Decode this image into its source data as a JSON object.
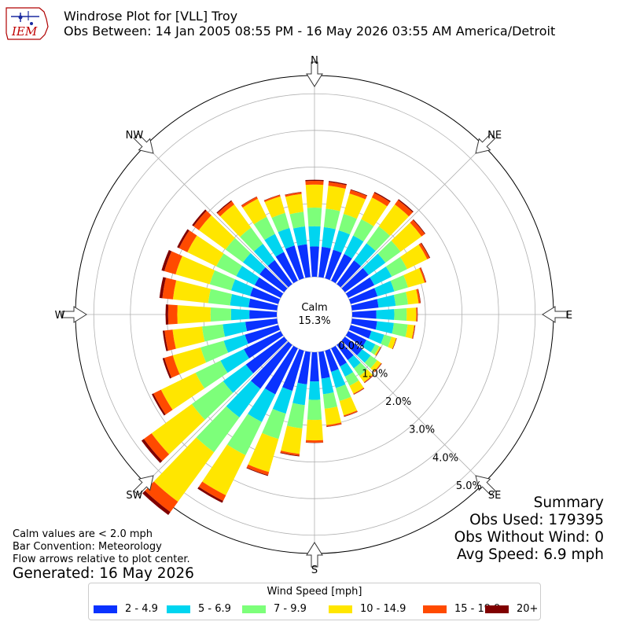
{
  "header": {
    "logo_text": "IEM",
    "title": "Windrose Plot for [VLL] Troy",
    "subtitle": "Obs Between: 14 Jan 2005 08:55 PM - 16 May 2026 03:55 AM America/Detroit"
  },
  "summary": {
    "title": "Summary",
    "obs_used": "Obs Used: 179395",
    "obs_without_wind": "Obs Without Wind: 0",
    "avg_speed": "Avg Speed: 6.9 mph"
  },
  "notes": {
    "calm": "Calm values are < 2.0 mph",
    "bar": "Bar Convention: Meteorology",
    "flow": "Flow arrows relative to plot center.",
    "generated": "Generated: 16 May 2026"
  },
  "legend": {
    "title": "Wind Speed [mph]",
    "items": [
      {
        "label": "2 - 4.9",
        "color": "#0a32ff"
      },
      {
        "label": "5 - 6.9",
        "color": "#00d5f0"
      },
      {
        "label": "7 - 9.9",
        "color": "#7dff7a"
      },
      {
        "label": "10 - 14.9",
        "color": "#ffe600"
      },
      {
        "label": "15 - 19.9",
        "color": "#ff4a00"
      },
      {
        "label": "20+",
        "color": "#800000"
      }
    ]
  },
  "chart_data": {
    "type": "windrose",
    "center_label": "Calm",
    "center_value": "15.3%",
    "radial_ticks": [
      "0.0%",
      "1.0%",
      "2.0%",
      "3.0%",
      "4.0%",
      "5.0%"
    ],
    "radial_tick_values": [
      0,
      1,
      2,
      3,
      4,
      5
    ],
    "rmax": 5.5,
    "direction_labels": [
      "N",
      "NE",
      "E",
      "SE",
      "S",
      "SW",
      "W",
      "NW"
    ],
    "direction_angles": [
      0,
      45,
      90,
      135,
      180,
      225,
      270,
      315
    ],
    "bins": [
      "2 - 4.9",
      "5 - 6.9",
      "7 - 9.9",
      "10 - 14.9",
      "15 - 19.9",
      "20+"
    ],
    "directions": [
      0,
      10,
      20,
      30,
      40,
      50,
      60,
      70,
      80,
      90,
      100,
      110,
      120,
      130,
      140,
      150,
      160,
      170,
      180,
      190,
      200,
      210,
      220,
      230,
      240,
      250,
      260,
      270,
      280,
      290,
      300,
      310,
      320,
      330,
      340,
      350
    ],
    "cumulative_percent": [
      [
        0.83,
        1.38,
        1.89,
        2.52,
        2.62,
        2.65
      ],
      [
        0.83,
        1.37,
        1.88,
        2.51,
        2.61,
        2.64
      ],
      [
        0.81,
        1.36,
        1.83,
        2.41,
        2.51,
        2.53
      ],
      [
        0.81,
        1.37,
        1.87,
        2.53,
        2.67,
        2.7
      ],
      [
        0.8,
        1.38,
        1.95,
        2.69,
        2.84,
        2.87
      ],
      [
        0.8,
        1.37,
        1.88,
        2.59,
        2.7,
        2.72
      ],
      [
        0.79,
        1.32,
        1.79,
        2.4,
        2.47,
        2.49
      ],
      [
        0.76,
        1.24,
        1.63,
        2.1,
        2.14,
        2.15
      ],
      [
        0.73,
        1.2,
        1.54,
        1.83,
        1.88,
        1.89
      ],
      [
        0.66,
        1.15,
        1.49,
        1.75,
        1.78,
        1.79
      ],
      [
        0.69,
        1.15,
        1.53,
        1.71,
        1.73,
        1.74
      ],
      [
        0.59,
        0.95,
        1.16,
        1.29,
        1.3,
        1.31
      ],
      [
        0.55,
        0.82,
        0.94,
        0.98,
        0.99,
        1.0
      ],
      [
        0.58,
        0.87,
        1.09,
        1.22,
        1.24,
        1.25
      ],
      [
        0.51,
        0.79,
        1.05,
        1.26,
        1.28,
        1.29
      ],
      [
        0.55,
        0.86,
        1.14,
        1.38,
        1.4,
        1.41
      ],
      [
        0.6,
        1.06,
        1.43,
        1.84,
        1.87,
        1.88
      ],
      [
        0.73,
        1.16,
        1.56,
        2.01,
        2.05,
        2.06
      ],
      [
        0.8,
        1.3,
        1.85,
        2.41,
        2.47,
        2.48
      ],
      [
        0.89,
        1.46,
        2.1,
        2.8,
        2.85,
        2.87
      ],
      [
        1.14,
        1.79,
        2.51,
        3.45,
        3.54,
        3.56
      ],
      [
        1.4,
        2.24,
        3.25,
        4.47,
        4.64,
        4.7
      ],
      [
        1.48,
        2.45,
        3.63,
        5.3,
        5.65,
        5.75
      ],
      [
        1.29,
        2.06,
        3.12,
        4.48,
        4.74,
        4.82
      ],
      [
        1.12,
        1.83,
        2.59,
        3.64,
        3.87,
        3.92
      ],
      [
        0.95,
        1.55,
        2.21,
        3.0,
        3.24,
        3.29
      ],
      [
        0.87,
        1.49,
        2.06,
        2.87,
        3.09,
        3.14
      ],
      [
        0.75,
        1.25,
        1.81,
        2.72,
        2.97,
        3.04
      ],
      [
        0.78,
        1.29,
        1.89,
        2.86,
        3.15,
        3.23
      ],
      [
        0.8,
        1.34,
        1.95,
        2.92,
        3.24,
        3.32
      ],
      [
        0.79,
        1.35,
        1.96,
        2.84,
        3.09,
        3.15
      ],
      [
        0.83,
        1.39,
        1.98,
        2.88,
        3.06,
        3.11
      ],
      [
        0.81,
        1.36,
        1.91,
        2.69,
        2.8,
        2.83
      ],
      [
        0.87,
        1.42,
        1.94,
        2.49,
        2.55,
        2.56
      ],
      [
        0.93,
        1.43,
        1.86,
        2.33,
        2.37,
        2.38
      ],
      [
        0.9,
        1.39,
        1.79,
        2.28,
        2.33,
        2.34
      ]
    ]
  }
}
